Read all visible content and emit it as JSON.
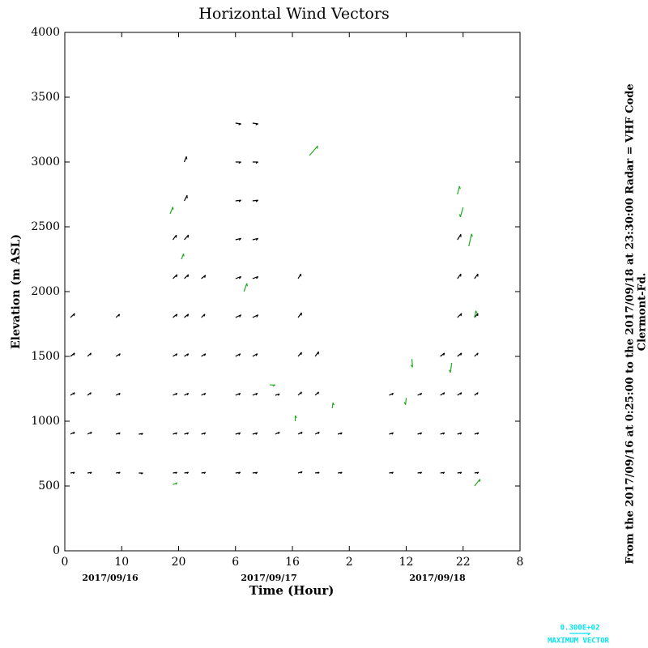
{
  "chart_data": {
    "type": "quiver",
    "title": "Horizontal Wind Vectors",
    "xlabel": "Time (Hour)",
    "ylabel": "Elevation (m ASL)",
    "xlim": [
      0,
      80
    ],
    "xticks": [
      0,
      10,
      20,
      {
        "value": 30,
        "label": "6"
      },
      {
        "value": 40,
        "label": "16"
      },
      {
        "value": 50,
        "label": "2"
      },
      {
        "value": 60,
        "label": "12"
      },
      {
        "value": 70,
        "label": "22"
      },
      {
        "value": 80,
        "label": "8"
      }
    ],
    "ylim": [
      0,
      4000
    ],
    "yticks": [
      0,
      500,
      1000,
      1500,
      2000,
      2500,
      3000,
      3500,
      4000
    ],
    "date_labels": [
      "2017/09/16",
      "2017/09/17",
      "2017/09/18"
    ],
    "side_text": [
      "From the 2017/09/16 at  0:25:00 to the 2017/09/18 at 23:30:00 Radar = VHF Code",
      "Clermont-Fd."
    ],
    "vector_sets": [
      {
        "color": "#000000",
        "vectors": [
          [
            1,
            600,
            6,
            1
          ],
          [
            1,
            900,
            6,
            3
          ],
          [
            1,
            1200,
            6,
            4
          ],
          [
            1,
            1500,
            6,
            5
          ],
          [
            1,
            1800,
            6,
            6
          ],
          [
            4,
            600,
            6,
            1
          ],
          [
            4,
            900,
            6,
            3
          ],
          [
            4,
            1200,
            5,
            4
          ],
          [
            4,
            1500,
            5,
            5
          ],
          [
            9,
            600,
            6,
            1
          ],
          [
            9,
            900,
            6,
            2
          ],
          [
            9,
            1200,
            6,
            3
          ],
          [
            9,
            1500,
            6,
            4
          ],
          [
            9,
            1800,
            5,
            5
          ],
          [
            13,
            600,
            6,
            0
          ],
          [
            13,
            900,
            6,
            1
          ],
          [
            19,
            600,
            6,
            1
          ],
          [
            19,
            900,
            6,
            2
          ],
          [
            19,
            1200,
            6,
            3
          ],
          [
            19,
            1500,
            6,
            4
          ],
          [
            19,
            1800,
            6,
            5
          ],
          [
            19,
            2100,
            6,
            6
          ],
          [
            19,
            2400,
            5,
            7
          ],
          [
            21,
            600,
            6,
            1
          ],
          [
            21,
            900,
            6,
            2
          ],
          [
            21,
            1200,
            6,
            3
          ],
          [
            21,
            1500,
            6,
            4
          ],
          [
            21,
            1800,
            6,
            5
          ],
          [
            21,
            2100,
            6,
            6
          ],
          [
            21,
            2400,
            6,
            7
          ],
          [
            21,
            2700,
            4,
            8
          ],
          [
            21,
            3000,
            3,
            8
          ],
          [
            24,
            600,
            6,
            1
          ],
          [
            24,
            900,
            6,
            2
          ],
          [
            24,
            1200,
            6,
            3
          ],
          [
            24,
            1500,
            6,
            4
          ],
          [
            24,
            1800,
            5,
            5
          ],
          [
            24,
            2100,
            6,
            5
          ],
          [
            30,
            600,
            7,
            1
          ],
          [
            30,
            900,
            7,
            2
          ],
          [
            30,
            1200,
            7,
            3
          ],
          [
            30,
            1500,
            7,
            4
          ],
          [
            30,
            1800,
            8,
            4
          ],
          [
            30,
            2100,
            8,
            3
          ],
          [
            30,
            2400,
            8,
            2
          ],
          [
            30,
            2700,
            8,
            1
          ],
          [
            30,
            3000,
            8,
            0
          ],
          [
            30,
            3300,
            8,
            -1
          ],
          [
            33,
            600,
            7,
            1
          ],
          [
            33,
            900,
            7,
            2
          ],
          [
            33,
            1200,
            7,
            3
          ],
          [
            33,
            1500,
            7,
            4
          ],
          [
            33,
            1800,
            8,
            4
          ],
          [
            33,
            2100,
            8,
            3
          ],
          [
            33,
            2400,
            8,
            2
          ],
          [
            33,
            2700,
            8,
            1
          ],
          [
            33,
            3000,
            8,
            0
          ],
          [
            33,
            3300,
            8,
            -1
          ],
          [
            37,
            900,
            6,
            3
          ],
          [
            37,
            1200,
            6,
            2
          ],
          [
            41,
            600,
            6,
            2
          ],
          [
            41,
            900,
            6,
            3
          ],
          [
            41,
            1200,
            5,
            5
          ],
          [
            41,
            1500,
            5,
            6
          ],
          [
            41,
            1800,
            5,
            7
          ],
          [
            41,
            2100,
            4,
            7
          ],
          [
            44,
            600,
            6,
            1
          ],
          [
            44,
            900,
            6,
            3
          ],
          [
            44,
            1200,
            5,
            5
          ],
          [
            44,
            1500,
            5,
            7
          ],
          [
            48,
            600,
            6,
            1
          ],
          [
            48,
            900,
            6,
            2
          ],
          [
            57,
            600,
            6,
            1
          ],
          [
            57,
            900,
            6,
            2
          ],
          [
            57,
            1200,
            6,
            3
          ],
          [
            62,
            600,
            6,
            1
          ],
          [
            62,
            900,
            6,
            2
          ],
          [
            62,
            1200,
            6,
            3
          ],
          [
            66,
            600,
            6,
            1
          ],
          [
            66,
            900,
            6,
            2
          ],
          [
            66,
            1200,
            6,
            4
          ],
          [
            66,
            1500,
            6,
            5
          ],
          [
            69,
            600,
            6,
            1
          ],
          [
            69,
            900,
            6,
            2
          ],
          [
            69,
            1200,
            6,
            4
          ],
          [
            69,
            1500,
            6,
            5
          ],
          [
            69,
            1800,
            6,
            6
          ],
          [
            69,
            2100,
            5,
            7
          ],
          [
            69,
            2400,
            5,
            8
          ],
          [
            72,
            600,
            6,
            1
          ],
          [
            72,
            900,
            6,
            2
          ],
          [
            72,
            1200,
            5,
            4
          ],
          [
            72,
            1500,
            5,
            5
          ],
          [
            72,
            1800,
            5,
            6
          ],
          [
            72,
            2100,
            5,
            7
          ]
        ]
      },
      {
        "color": "#22aa22",
        "vectors": [
          [
            18.5,
            2600,
            4,
            10
          ],
          [
            20.5,
            2250,
            3,
            8
          ],
          [
            31.5,
            2000,
            4,
            12
          ],
          [
            43,
            3050,
            12,
            14
          ],
          [
            69,
            2750,
            3,
            12
          ],
          [
            70,
            2650,
            -4,
            -14
          ],
          [
            71,
            2350,
            4,
            18
          ],
          [
            72,
            1800,
            2,
            10
          ],
          [
            68,
            1450,
            -2,
            -14
          ],
          [
            61,
            1480,
            1,
            -12
          ],
          [
            60,
            1180,
            -1,
            -10
          ],
          [
            19,
            510,
            6,
            3
          ],
          [
            72,
            500,
            8,
            10
          ],
          [
            36,
            1280,
            8,
            0
          ],
          [
            40.5,
            1000,
            0,
            8
          ],
          [
            47,
            1100,
            1,
            8
          ]
        ]
      }
    ],
    "max_vector": {
      "value": 30,
      "label": "0.300E+02",
      "caption": "MAXIMUM VECTOR",
      "color": "#00e5ee"
    }
  }
}
